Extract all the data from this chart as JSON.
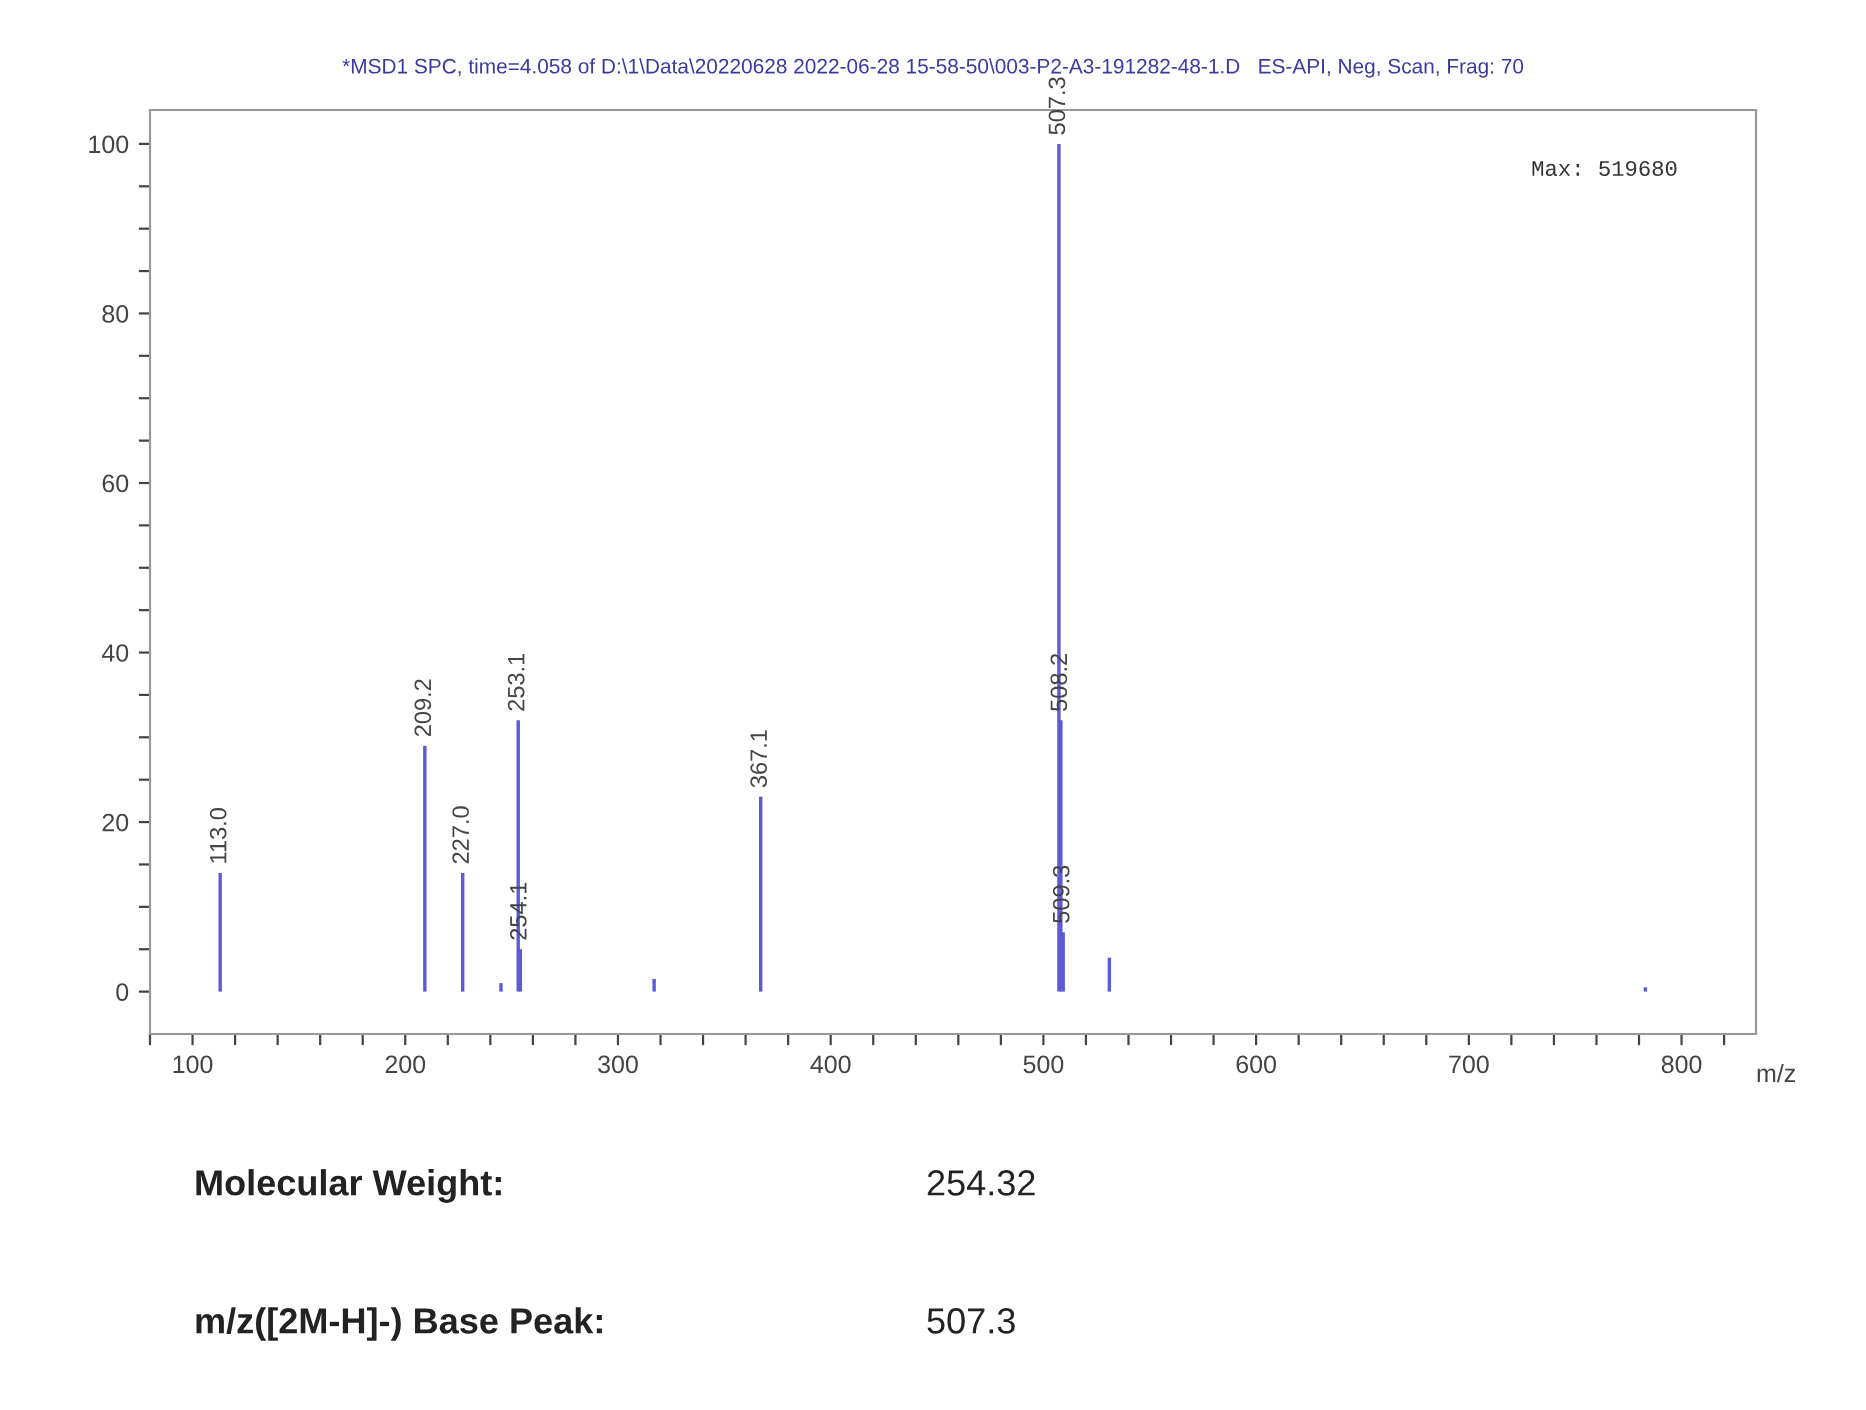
{
  "chart_data": {
    "type": "bar",
    "title": "*MSD1 SPC, time=4.058 of D:\\1\\Data\\20220628 2022-06-28 15-58-50\\003-P2-A3-191282-48-1.D   ES-API, Neg, Scan, Frag: 70",
    "xlabel": "m/z",
    "x": [
      113.0,
      209.2,
      227.0,
      245,
      253.1,
      254.1,
      317,
      367.1,
      507.3,
      508.2,
      509.3,
      531,
      783
    ],
    "series": [
      {
        "color": "#5b5bd6",
        "values": [
          14,
          29,
          14,
          1,
          32,
          5,
          1.5,
          23,
          100,
          32,
          7,
          4,
          0.5
        ]
      }
    ],
    "xlim": [
      80,
      835
    ],
    "xticks": [
      {
        "value": 80,
        "label": null
      },
      100,
      {
        "value": 120,
        "label": null
      },
      {
        "value": 140,
        "label": null
      },
      {
        "value": 160,
        "label": null
      },
      {
        "value": 180,
        "label": null
      },
      200,
      {
        "value": 220,
        "label": null
      },
      {
        "value": 240,
        "label": null
      },
      {
        "value": 260,
        "label": null
      },
      {
        "value": 280,
        "label": null
      },
      300,
      {
        "value": 320,
        "label": null
      },
      {
        "value": 340,
        "label": null
      },
      {
        "value": 360,
        "label": null
      },
      {
        "value": 380,
        "label": null
      },
      400,
      {
        "value": 420,
        "label": null
      },
      {
        "value": 440,
        "label": null
      },
      {
        "value": 460,
        "label": null
      },
      {
        "value": 480,
        "label": null
      },
      500,
      {
        "value": 520,
        "label": null
      },
      {
        "value": 540,
        "label": null
      },
      {
        "value": 560,
        "label": null
      },
      {
        "value": 580,
        "label": null
      },
      600,
      {
        "value": 620,
        "label": null
      },
      {
        "value": 640,
        "label": null
      },
      {
        "value": 660,
        "label": null
      },
      {
        "value": 680,
        "label": null
      },
      700,
      {
        "value": 720,
        "label": null
      },
      {
        "value": 740,
        "label": null
      },
      {
        "value": 760,
        "label": null
      },
      {
        "value": 780,
        "label": null
      },
      800,
      {
        "value": 820,
        "label": null
      }
    ],
    "ylim": [
      -5,
      104
    ],
    "yticks": [
      0,
      {
        "value": 5,
        "label": null
      },
      {
        "value": 10,
        "label": null
      },
      {
        "value": 15,
        "label": null
      },
      20,
      {
        "value": 25,
        "label": null
      },
      {
        "value": 30,
        "label": null
      },
      {
        "value": 35,
        "label": null
      },
      40,
      {
        "value": 45,
        "label": null
      },
      {
        "value": 50,
        "label": null
      },
      {
        "value": 55,
        "label": null
      },
      60,
      {
        "value": 65,
        "label": null
      },
      {
        "value": 70,
        "label": null
      },
      {
        "value": 75,
        "label": null
      },
      80,
      {
        "value": 85,
        "label": null
      },
      {
        "value": 90,
        "label": null
      },
      {
        "value": 95,
        "label": null
      },
      100
    ],
    "grid": false,
    "annotations": [
      "Max: 519680",
      "Molecular Weight:",
      "254.32",
      "m/z([2M-H]-) Base Peak:",
      "507.3",
      {
        "text": "113.0",
        "x": 113.0,
        "y": 14
      },
      {
        "text": "209.2",
        "x": 209.2,
        "y": 29
      },
      {
        "text": "227.0",
        "x": 227.0,
        "y": 14
      },
      {
        "text": "253.1",
        "x": 253.1,
        "y": 32
      },
      {
        "text": "254.1",
        "x": 254.1,
        "y": 5
      },
      {
        "text": "367.1",
        "x": 367.1,
        "y": 23
      },
      {
        "text": "507.3",
        "x": 507.3,
        "y": 100
      },
      {
        "text": "508.2",
        "x": 508.2,
        "y": 32
      },
      {
        "text": "509.3",
        "x": 509.3,
        "y": 7
      }
    ]
  }
}
